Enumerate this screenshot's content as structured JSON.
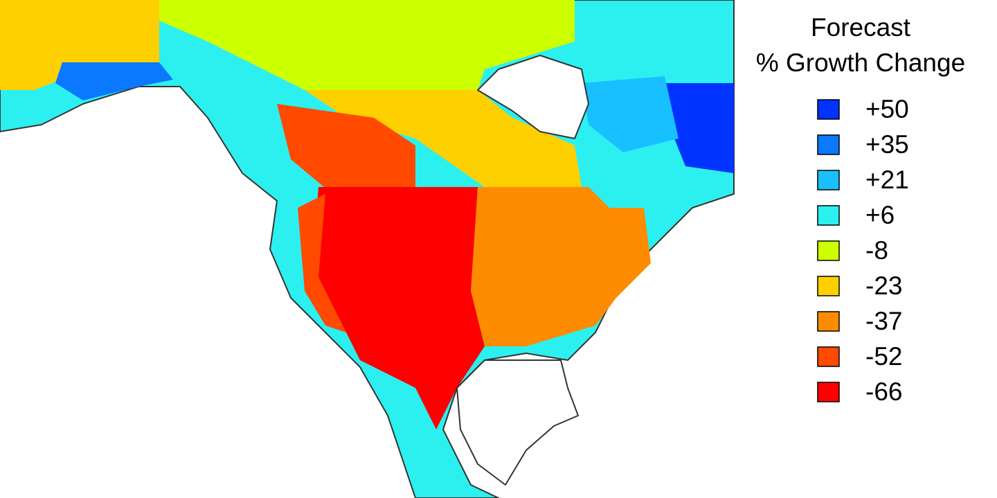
{
  "legend": {
    "title_lines": [
      "Forecast",
      "% Growth Change"
    ],
    "items": [
      {
        "label": "+50",
        "color": "#0033ff"
      },
      {
        "label": "+35",
        "color": "#0a78ff"
      },
      {
        "label": "+21",
        "color": "#18c0ff"
      },
      {
        "label": "+6",
        "color": "#2cf0f0"
      },
      {
        "label": "-8",
        "color": "#ccff00"
      },
      {
        "label": "-23",
        "color": "#ffd000"
      },
      {
        "label": "-37",
        "color": "#ff8c00"
      },
      {
        "label": "-52",
        "color": "#ff4a00"
      },
      {
        "label": "-66",
        "color": "#ff0000"
      }
    ]
  }
}
